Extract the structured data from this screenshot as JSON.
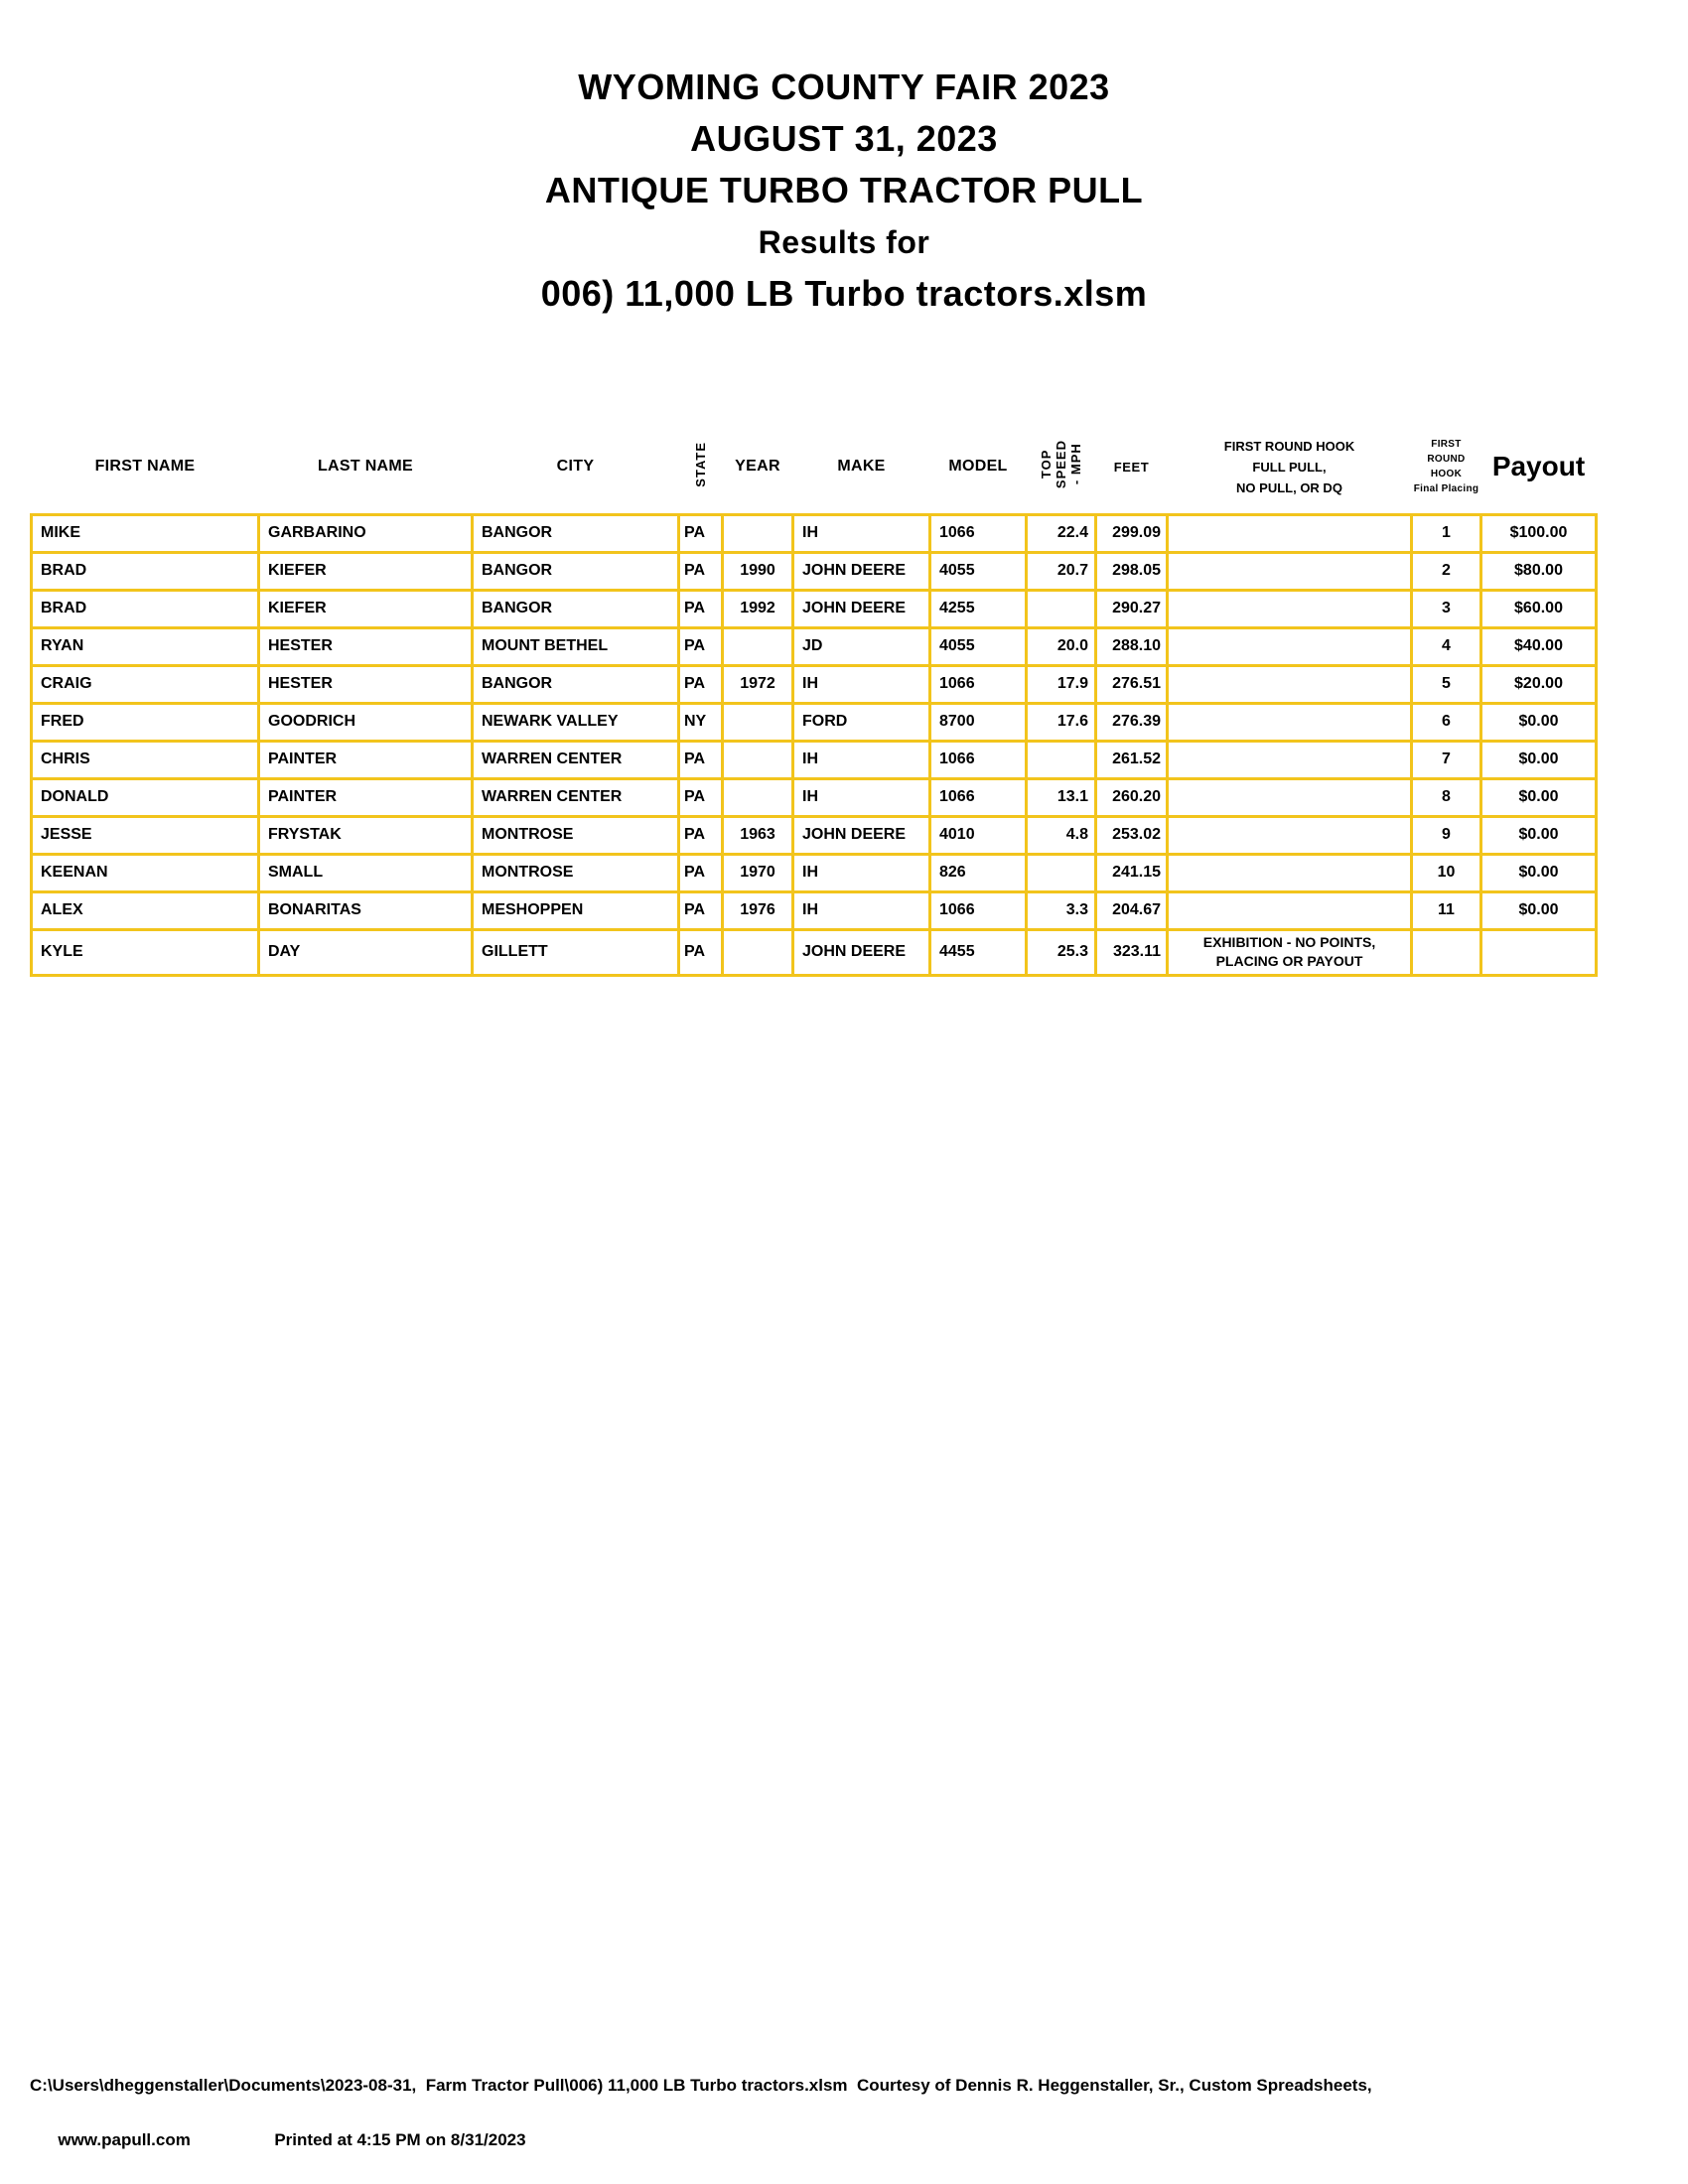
{
  "title": {
    "lines": [
      "WYOMING COUNTY FAIR 2023",
      "AUGUST 31, 2023",
      "ANTIQUE TURBO TRACTOR PULL",
      "Results for",
      "006) 11,000 LB Turbo tractors.xlsm"
    ]
  },
  "table": {
    "headers": {
      "first_name": "FIRST NAME",
      "last_name": "LAST NAME",
      "city": "CITY",
      "state": "STATE",
      "year": "YEAR",
      "make": "MAKE",
      "model": "MODEL",
      "top_speed": "TOP\nSPEED\n- MPH",
      "feet": "FEET",
      "first_round_hook": "FIRST ROUND HOOK\nFULL PULL,\nNO PULL, OR DQ",
      "placing": "FIRST ROUND\nHOOK\nFinal Placing",
      "payout": "Payout"
    },
    "rows": [
      {
        "first_name": "MIKE",
        "last_name": "GARBARINO",
        "city": "BANGOR",
        "state": "PA",
        "year": "",
        "make": "IH",
        "model": "1066",
        "top_speed": "22.4",
        "feet": "299.09",
        "first_round_hook": "",
        "placing": "1",
        "payout": "$100.00"
      },
      {
        "first_name": "BRAD",
        "last_name": "KIEFER",
        "city": "BANGOR",
        "state": "PA",
        "year": "1990",
        "make": "JOHN DEERE",
        "model": "4055",
        "top_speed": "20.7",
        "feet": "298.05",
        "first_round_hook": "",
        "placing": "2",
        "payout": "$80.00"
      },
      {
        "first_name": "BRAD",
        "last_name": "KIEFER",
        "city": "BANGOR",
        "state": "PA",
        "year": "1992",
        "make": "JOHN DEERE",
        "model": "4255",
        "top_speed": "",
        "feet": "290.27",
        "first_round_hook": "",
        "placing": "3",
        "payout": "$60.00"
      },
      {
        "first_name": "RYAN",
        "last_name": "HESTER",
        "city": "MOUNT BETHEL",
        "state": "PA",
        "year": "",
        "make": "JD",
        "model": "4055",
        "top_speed": "20.0",
        "feet": "288.10",
        "first_round_hook": "",
        "placing": "4",
        "payout": "$40.00"
      },
      {
        "first_name": "CRAIG",
        "last_name": "HESTER",
        "city": "BANGOR",
        "state": "PA",
        "year": "1972",
        "make": "IH",
        "model": "1066",
        "top_speed": "17.9",
        "feet": "276.51",
        "first_round_hook": "",
        "placing": "5",
        "payout": "$20.00"
      },
      {
        "first_name": "FRED",
        "last_name": "GOODRICH",
        "city": "NEWARK VALLEY",
        "state": "NY",
        "year": "",
        "make": "FORD",
        "model": "8700",
        "top_speed": "17.6",
        "feet": "276.39",
        "first_round_hook": "",
        "placing": "6",
        "payout": "$0.00"
      },
      {
        "first_name": "CHRIS",
        "last_name": "PAINTER",
        "city": "WARREN CENTER",
        "state": "PA",
        "year": "",
        "make": "IH",
        "model": "1066",
        "top_speed": "",
        "feet": "261.52",
        "first_round_hook": "",
        "placing": "7",
        "payout": "$0.00"
      },
      {
        "first_name": "DONALD",
        "last_name": "PAINTER",
        "city": "WARREN CENTER",
        "state": "PA",
        "year": "",
        "make": "IH",
        "model": "1066",
        "top_speed": "13.1",
        "feet": "260.20",
        "first_round_hook": "",
        "placing": "8",
        "payout": "$0.00"
      },
      {
        "first_name": "JESSE",
        "last_name": "FRYSTAK",
        "city": "MONTROSE",
        "state": "PA",
        "year": "1963",
        "make": "JOHN DEERE",
        "model": "4010",
        "top_speed": "4.8",
        "feet": "253.02",
        "first_round_hook": "",
        "placing": "9",
        "payout": "$0.00"
      },
      {
        "first_name": "KEENAN",
        "last_name": "SMALL",
        "city": "MONTROSE",
        "state": "PA",
        "year": "1970",
        "make": "IH",
        "model": "826",
        "top_speed": "",
        "feet": "241.15",
        "first_round_hook": "",
        "placing": "10",
        "payout": "$0.00"
      },
      {
        "first_name": "ALEX",
        "last_name": "BONARITAS",
        "city": "MESHOPPEN",
        "state": "PA",
        "year": "1976",
        "make": "IH",
        "model": "1066",
        "top_speed": "3.3",
        "feet": "204.67",
        "first_round_hook": "",
        "placing": "11",
        "payout": "$0.00"
      },
      {
        "first_name": "KYLE",
        "last_name": "DAY",
        "city": "GILLETT",
        "state": "PA",
        "year": "",
        "make": "JOHN DEERE",
        "model": "4455",
        "top_speed": "25.3",
        "feet": "323.11",
        "first_round_hook": "EXHIBITION - NO POINTS,\nPLACING OR PAYOUT",
        "placing": "",
        "payout": ""
      }
    ]
  },
  "footer": {
    "line1": "C:\\Users\\dheggenstaller\\Documents\\2023-08-31,  Farm Tractor Pull\\006) 11,000 LB Turbo tractors.xlsm  Courtesy of Dennis R. Heggenstaller, Sr., Custom Spreadsheets,",
    "website": "www.papull.com",
    "printed": "Printed at 4:15 PM on 8/31/2023"
  },
  "colors": {
    "border": "#F2C41C",
    "text": "#000000",
    "background": "#FFFFFF"
  }
}
